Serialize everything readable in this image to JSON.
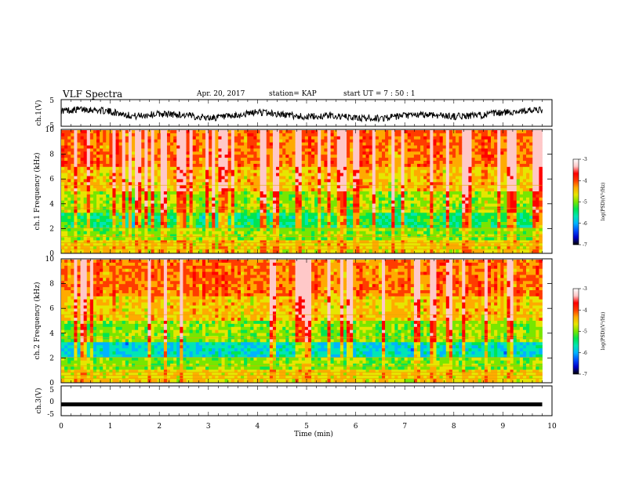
{
  "header": {
    "title": "VLF Spectra",
    "date": "Apr. 20, 2017",
    "station": "station= KAP",
    "start": "start  UT =   7 : 50 : 1"
  },
  "colors": {
    "spectrogram_scale": [
      "#000000",
      "#0000c8",
      "#0050ff",
      "#00b4ff",
      "#00e6b4",
      "#00e650",
      "#78e600",
      "#e6e600",
      "#ffaa00",
      "#ff3c00",
      "#ff0000",
      "#ffc8c8",
      "#ffffff"
    ]
  },
  "chart_data": [
    {
      "type": "line",
      "panel": "ch.1 waveform",
      "title": "VLF Spectra",
      "xlabel": "Time (min)",
      "ylabel": "ch.1(V)",
      "xlim": [
        0,
        10
      ],
      "ylim": [
        -5,
        5
      ],
      "y_ticks": [
        "5",
        "-5"
      ],
      "series": [
        {
          "x": [
            0,
            0.5,
            1,
            1.5,
            2,
            2.5,
            3,
            3.5,
            4,
            4.5,
            5,
            5.5,
            6,
            6.5,
            7,
            7.5,
            8,
            8.5,
            9,
            9.5,
            9.8
          ],
          "values": [
            0.8,
            1.5,
            0.5,
            -1.2,
            -0.3,
            -0.8,
            -1.8,
            -1.4,
            0.4,
            -0.6,
            -1.5,
            -1.0,
            -1.9,
            -2.0,
            -1.1,
            -0.6,
            -1.3,
            -0.9,
            0.1,
            0.9,
            1.0
          ]
        }
      ]
    },
    {
      "type": "heatmap",
      "panel": "ch.1 spectrogram",
      "ylabel": "ch.1 Frequency (kHz)",
      "xlim": [
        0,
        9.8
      ],
      "ylim": [
        0,
        10
      ],
      "y_ticks": [
        "0",
        "2",
        "4",
        "6",
        "8",
        "10"
      ],
      "colorbar": {
        "label": "log(PSD)(V²/Hz)",
        "range": [
          -7,
          -3
        ],
        "ticks": [
          "-3",
          "-4",
          "-5",
          "-6",
          "-7"
        ]
      }
    },
    {
      "type": "heatmap",
      "panel": "ch.2 spectrogram",
      "ylabel": "ch.2 Frequency (kHz)",
      "xlim": [
        0,
        9.8
      ],
      "ylim": [
        0,
        10
      ],
      "y_ticks": [
        "0",
        "2",
        "4",
        "6",
        "8",
        "10"
      ],
      "colorbar": {
        "label": "log(PSD)(V²/Hz)",
        "range": [
          -7,
          -3
        ],
        "ticks": [
          "-3",
          "-4",
          "-5",
          "-6",
          "-7"
        ]
      }
    },
    {
      "type": "line",
      "panel": "ch.3 waveform",
      "ylabel": "ch.3(V)",
      "xlabel": "Time (min)",
      "xlim": [
        0,
        10
      ],
      "ylim": [
        -5,
        5
      ],
      "y_ticks": [
        "5",
        "0",
        "-5"
      ],
      "x_ticks": [
        "0",
        "1",
        "2",
        "3",
        "4",
        "5",
        "6",
        "7",
        "8",
        "9",
        "10"
      ],
      "series": [
        {
          "x": [
            0,
            9.8
          ],
          "values": [
            -1.2,
            -1.2
          ]
        }
      ]
    }
  ]
}
